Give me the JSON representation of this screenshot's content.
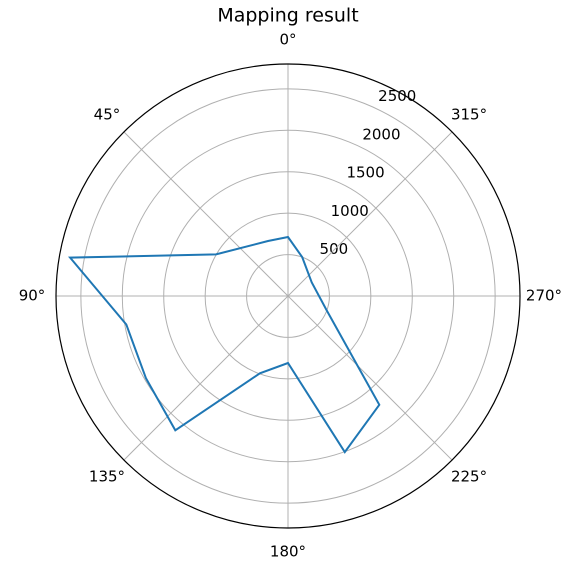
{
  "chart_data": {
    "type": "polar",
    "title": "Mapping result",
    "theta_direction": "counterclockwise",
    "theta_zero": "N",
    "x": [
      0,
      20,
      60,
      80,
      100,
      120,
      140,
      160,
      180,
      200,
      220,
      250,
      300,
      340
    ],
    "values": [
      712,
      706,
      1004,
      2670,
      1982,
      1981,
      2116,
      993,
      809,
      2005,
      1714,
      494,
      330,
      500
    ],
    "color": "#1f77b4",
    "ylim": [
      0,
      2800
    ],
    "yticks": [
      500,
      1000,
      1500,
      2000,
      2500
    ],
    "xticks": [
      {
        "value": 0,
        "label": "0°"
      },
      {
        "value": 45,
        "label": "45°"
      },
      {
        "value": 90,
        "label": "90°"
      },
      {
        "value": 135,
        "label": "135°"
      },
      {
        "value": 180,
        "label": "180°"
      },
      {
        "value": 225,
        "label": "225°"
      },
      {
        "value": 270,
        "label": "270°"
      },
      {
        "value": 315,
        "label": "315°"
      }
    ],
    "grid": true
  }
}
